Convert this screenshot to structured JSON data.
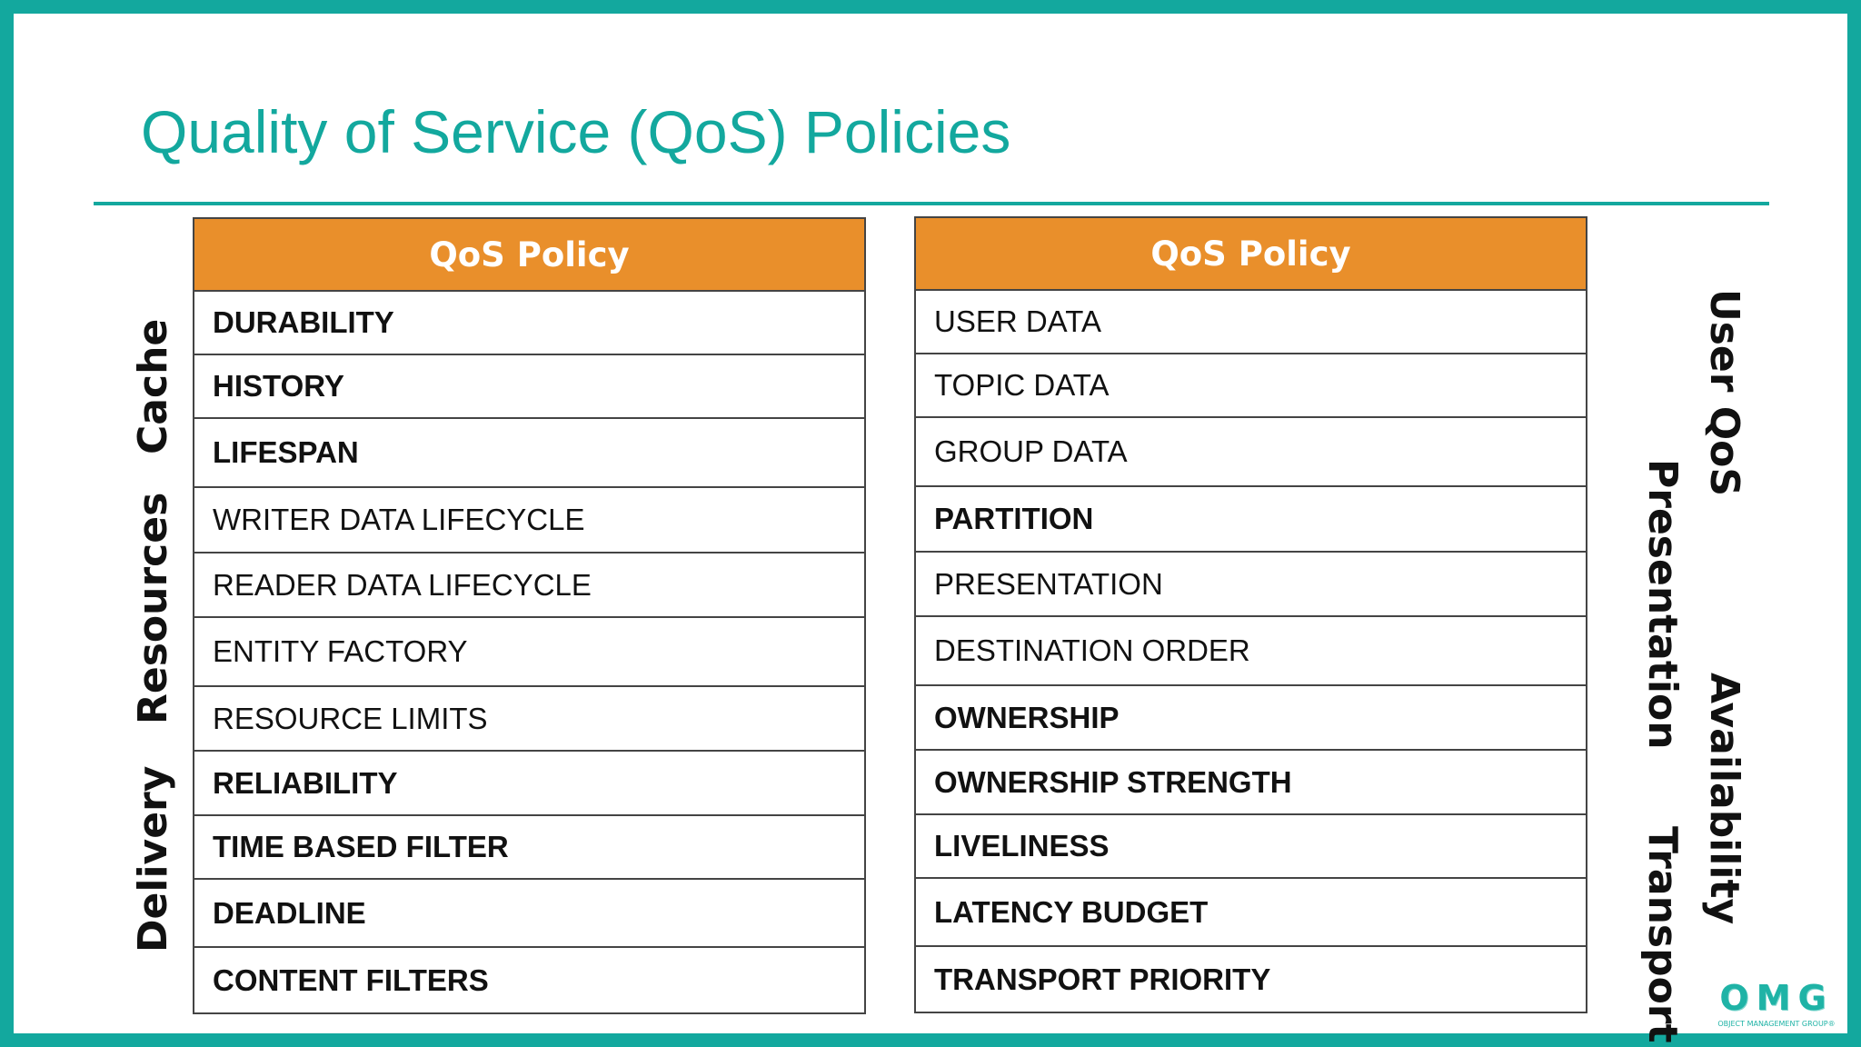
{
  "slide": {
    "title": "Quality of Service (QoS) Policies"
  },
  "left_table": {
    "header": "QoS Policy",
    "rows": [
      {
        "label": "DURABILITY",
        "bold": true
      },
      {
        "label": "HISTORY",
        "bold": true
      },
      {
        "label": "LIFESPAN",
        "bold": true
      },
      {
        "label": "WRITER DATA LIFECYCLE",
        "bold": false
      },
      {
        "label": "READER DATA LIFECYCLE",
        "bold": false
      },
      {
        "label": "ENTITY FACTORY",
        "bold": false
      },
      {
        "label": "RESOURCE LIMITS",
        "bold": false
      },
      {
        "label": "RELIABILITY",
        "bold": true
      },
      {
        "label": "TIME BASED FILTER",
        "bold": true
      },
      {
        "label": "DEADLINE",
        "bold": true
      },
      {
        "label": "CONTENT FILTERS",
        "bold": true
      }
    ]
  },
  "right_table": {
    "header": "QoS Policy",
    "rows": [
      {
        "label": "USER DATA",
        "bold": false
      },
      {
        "label": "TOPIC DATA",
        "bold": false
      },
      {
        "label": "GROUP DATA",
        "bold": false
      },
      {
        "label": "PARTITION",
        "bold": true
      },
      {
        "label": "PRESENTATION",
        "bold": false
      },
      {
        "label": "DESTINATION ORDER",
        "bold": false
      },
      {
        "label": "OWNERSHIP",
        "bold": true
      },
      {
        "label": "OWNERSHIP STRENGTH",
        "bold": true
      },
      {
        "label": "LIVELINESS",
        "bold": true
      },
      {
        "label": "LATENCY BUDGET",
        "bold": true
      },
      {
        "label": "TRANSPORT PRIORITY",
        "bold": true
      }
    ]
  },
  "category_labels": {
    "cache": "Cache",
    "resources": "Resources",
    "delivery": "Delivery",
    "user_qos": "User QoS",
    "presentation": "Presentation",
    "availability": "Availability",
    "transport": "Transport"
  },
  "logo": {
    "letters": "OMG",
    "subtitle": "OBJECT MANAGEMENT GROUP®"
  },
  "colors": {
    "accent": "#13a89e",
    "header_orange": "#e98f2b"
  }
}
